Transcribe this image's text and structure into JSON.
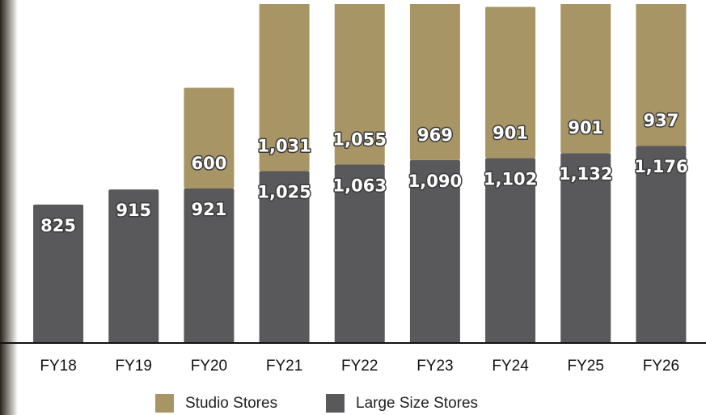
{
  "chart_data": {
    "type": "stacked-bar",
    "categories": [
      "FY18",
      "FY19",
      "FY20",
      "FY21",
      "FY22",
      "FY23",
      "FY24",
      "FY25",
      "FY26"
    ],
    "series": [
      {
        "name": "Large Size Stores",
        "color": "#59595b",
        "values": [
          825,
          915,
          921,
          1025,
          1063,
          1090,
          1102,
          1132,
          1176
        ],
        "value_labels": [
          "825",
          "915",
          "921",
          "1,025",
          "1,063",
          "1,090",
          "1,102",
          "1,132",
          "1,176"
        ]
      },
      {
        "name": "Studio Stores",
        "color": "#a89565",
        "values": [
          null,
          null,
          600,
          1031,
          1055,
          969,
          901,
          901,
          937
        ],
        "value_labels": [
          null,
          null,
          "600",
          "1,031",
          "1,055",
          "969",
          "901",
          "901",
          "937"
        ]
      }
    ],
    "ylim": [
      0,
      2020
    ],
    "legend_order": [
      1,
      0
    ]
  }
}
